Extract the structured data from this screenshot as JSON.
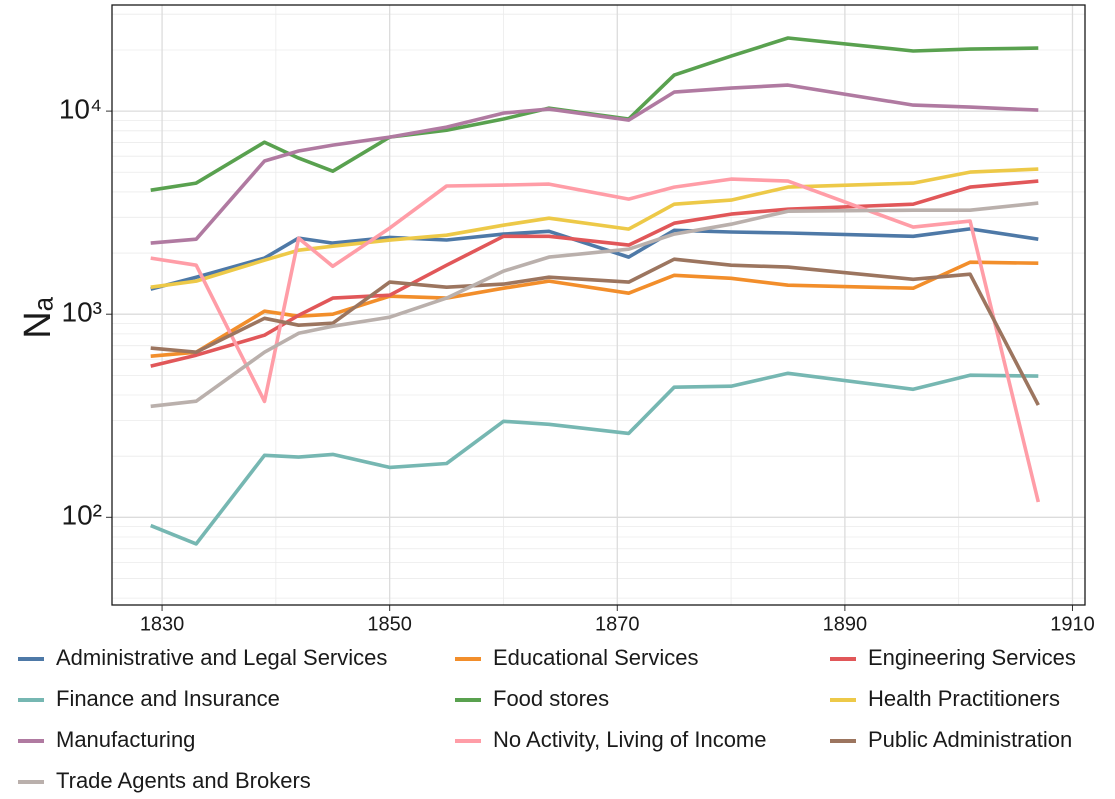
{
  "chart_data": {
    "type": "line",
    "ylabel": "Nₐ",
    "log_y": true,
    "grid": true,
    "x": [
      1829,
      1833,
      1839,
      1842,
      1845,
      1850,
      1855,
      1860,
      1864,
      1871,
      1875,
      1880,
      1885,
      1896,
      1901,
      1907
    ],
    "xlim": [
      1825.6,
      1911.1
    ],
    "xticks": [
      1830,
      1850,
      1870,
      1890,
      1910
    ],
    "ylim": [
      37,
      33300
    ],
    "yticks": [
      {
        "value": 100,
        "label": "10²"
      },
      {
        "value": 1000,
        "label": "10³"
      },
      {
        "value": 10000,
        "label": "10⁴"
      }
    ],
    "legend_position": "bottom",
    "series": [
      {
        "name": "Administrative and Legal Services",
        "color": "#4e79a7",
        "values": [
          1330,
          1520,
          1890,
          2370,
          2240,
          2390,
          2320,
          2480,
          2560,
          1910,
          2590,
          2540,
          2510,
          2420,
          2630,
          2340
        ]
      },
      {
        "name": "Educational Services",
        "color": "#f28e2b",
        "values": [
          621,
          650,
          1035,
          978,
          1000,
          1227,
          1200,
          1343,
          1455,
          1269,
          1555,
          1503,
          1390,
          1343,
          1803,
          1782
        ]
      },
      {
        "name": "Engineering Services",
        "color": "#e15759",
        "values": [
          555,
          628,
          788,
          988,
          1200,
          1241,
          1742,
          2420,
          2420,
          2188,
          2805,
          3110,
          3290,
          3480,
          4225,
          4525
        ]
      },
      {
        "name": "Finance and Insurance",
        "color": "#76b7b2",
        "values": [
          91,
          74,
          202,
          198,
          204,
          176,
          184,
          297,
          287,
          259,
          437,
          442,
          512,
          427,
          501,
          496
        ]
      },
      {
        "name": "Food stores",
        "color": "#59a14f",
        "values": [
          4080,
          4420,
          7030,
          5870,
          5060,
          7450,
          8050,
          9140,
          10350,
          9140,
          15040,
          18660,
          22900,
          19770,
          20200,
          20420
        ]
      },
      {
        "name": "Health Practitioners",
        "color": "#edc948",
        "values": [
          1358,
          1455,
          1845,
          2066,
          2162,
          2316,
          2450,
          2742,
          2970,
          2623,
          3480,
          3645,
          4225,
          4420,
          5010,
          5180
        ]
      },
      {
        "name": "Manufacturing",
        "color": "#b07aa1",
        "values": [
          2240,
          2340,
          5680,
          6360,
          6800,
          7450,
          8340,
          9780,
          10230,
          9030,
          12410,
          12980,
          13430,
          10710,
          10460,
          10110
        ]
      },
      {
        "name": "No Activity, Living of Income",
        "color": "#ff9da7",
        "values": [
          1890,
          1743,
          372,
          2366,
          1722,
          2654,
          4276,
          4320,
          4370,
          3688,
          4226,
          4627,
          4525,
          2685,
          2873,
          119
        ]
      },
      {
        "name": "Public Administration",
        "color": "#9c755f",
        "values": [
          681,
          650,
          955,
          883,
          903,
          1439,
          1358,
          1406,
          1521,
          1439,
          1866,
          1742,
          1706,
          1486,
          1574,
          357
        ]
      },
      {
        "name": "Trade Agents and Brokers",
        "color": "#bab0ac",
        "values": [
          352,
          373,
          650,
          805,
          873,
          967,
          1200,
          1630,
          1910,
          2090,
          2480,
          2773,
          3214,
          3250,
          3250,
          3524
        ]
      }
    ]
  }
}
